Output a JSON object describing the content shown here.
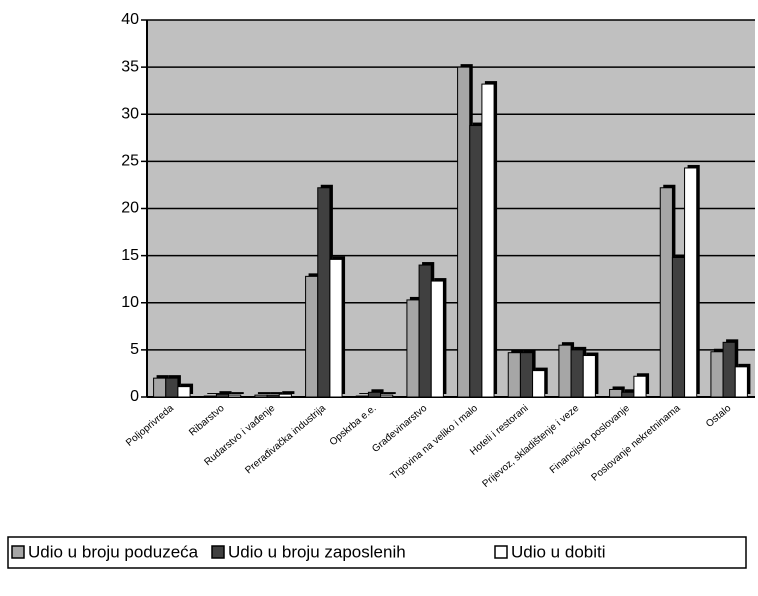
{
  "chart_data": {
    "type": "bar",
    "categories": [
      "Poljoprivreda",
      "Ribarstvo",
      "Rudarstvo i vađenje",
      "Prerađivačka industrija",
      "Opskrba e.e.",
      "Građevinarstvo",
      "Trgovina na veliko i malo",
      "Hoteli i restorani",
      "Prijevoz, skladištenje i veze",
      "Financijsko poslovanje",
      "Poslovanje nekretninama",
      "Ostalo"
    ],
    "series": [
      {
        "name": "Udio u broju poduzeća",
        "color": "#a6a6a6",
        "values": [
          2.0,
          0.1,
          0.2,
          12.8,
          0.1,
          10.3,
          35.0,
          4.7,
          5.5,
          0.8,
          22.2,
          4.8
        ]
      },
      {
        "name": "Udio u broju zaposlenih",
        "color": "#404040",
        "values": [
          2.0,
          0.3,
          0.2,
          22.2,
          0.5,
          14.0,
          28.8,
          4.7,
          5.0,
          0.5,
          14.8,
          5.8
        ]
      },
      {
        "name": "Udio u dobiti",
        "color": "#ffffff",
        "values": [
          1.1,
          0.2,
          0.3,
          14.6,
          0.2,
          12.3,
          33.2,
          2.8,
          4.4,
          2.2,
          24.3,
          3.2
        ]
      }
    ],
    "ylim": [
      0,
      40
    ],
    "yticks": [
      0,
      5,
      10,
      15,
      20,
      25,
      30,
      35,
      40
    ],
    "grid": true,
    "legend": "bottom"
  }
}
